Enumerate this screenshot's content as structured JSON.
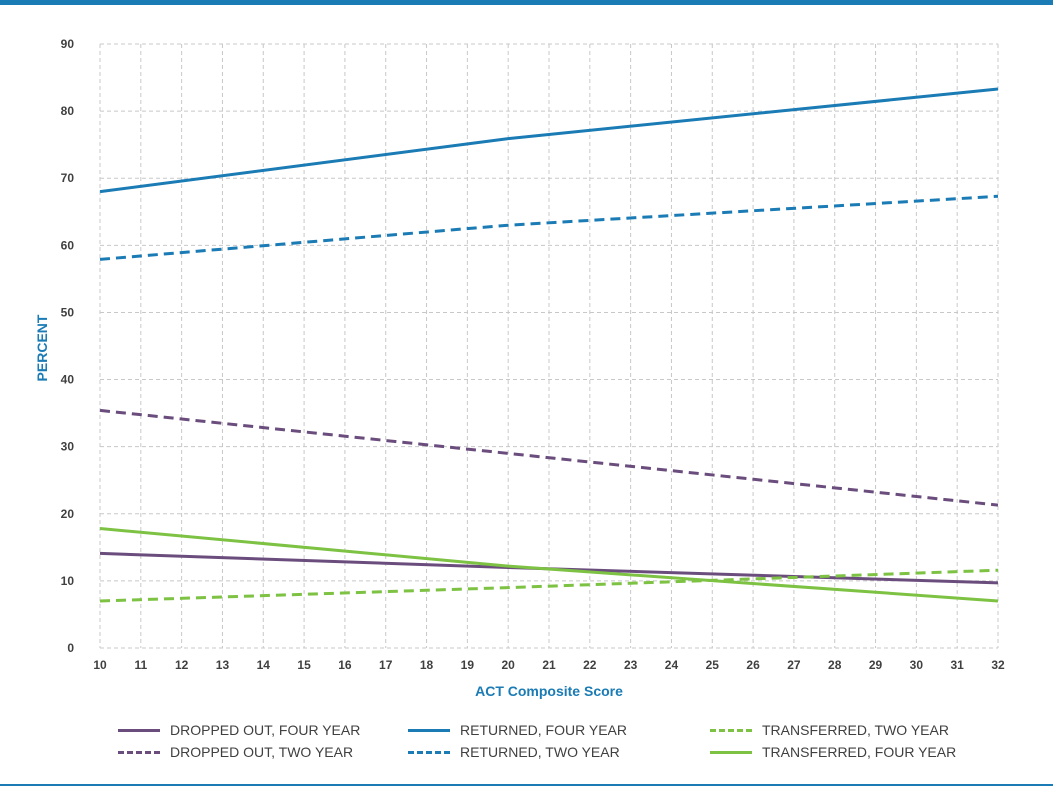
{
  "colors": {
    "rule": "#1a7bb5",
    "axis_title": "#1a7bb5",
    "grid": "#c8c8c8",
    "dropped": "#6b4d7d",
    "transferred": "#7dc243",
    "returned": "#1a7bb5"
  },
  "chart_data": {
    "type": "line",
    "title": "",
    "xlabel": "ACT Composite Score",
    "ylabel": "PERCENT",
    "xlim": [
      10,
      32
    ],
    "ylim": [
      0,
      90
    ],
    "x_ticks": [
      10,
      11,
      12,
      13,
      14,
      15,
      16,
      17,
      18,
      19,
      20,
      21,
      22,
      23,
      24,
      25,
      26,
      27,
      28,
      29,
      30,
      31,
      32
    ],
    "y_ticks": [
      0,
      10,
      20,
      30,
      40,
      50,
      60,
      70,
      80,
      90
    ],
    "grid": true,
    "legend_position": "bottom",
    "series": [
      {
        "name": "DROPPED OUT, FOUR YEAR",
        "style": "solid",
        "color_key": "dropped",
        "x": [
          10,
          20,
          32
        ],
        "y": [
          14.1,
          12.0,
          9.7
        ]
      },
      {
        "name": "TRANSFERRED, FOUR YEAR",
        "style": "solid",
        "color_key": "transferred",
        "x": [
          10,
          20,
          32
        ],
        "y": [
          17.8,
          12.2,
          7.0
        ]
      },
      {
        "name": "RETURNED, FOUR YEAR",
        "style": "solid",
        "color_key": "returned",
        "x": [
          10,
          20,
          32
        ],
        "y": [
          68.0,
          75.9,
          83.3
        ]
      },
      {
        "name": "DROPPED OUT, TWO YEAR",
        "style": "dashed",
        "color_key": "dropped",
        "x": [
          10,
          20,
          32
        ],
        "y": [
          35.4,
          29.0,
          21.3
        ]
      },
      {
        "name": "TRANSFERRED, TWO YEAR",
        "style": "dashed",
        "color_key": "transferred",
        "x": [
          10,
          20,
          32
        ],
        "y": [
          7.0,
          9.0,
          11.6
        ]
      },
      {
        "name": "RETURNED, TWO YEAR",
        "style": "dashed",
        "color_key": "returned",
        "x": [
          10,
          20,
          32
        ],
        "y": [
          57.9,
          63.0,
          67.3
        ]
      }
    ]
  },
  "legend_order": [
    0,
    2,
    4,
    3,
    5,
    1
  ]
}
